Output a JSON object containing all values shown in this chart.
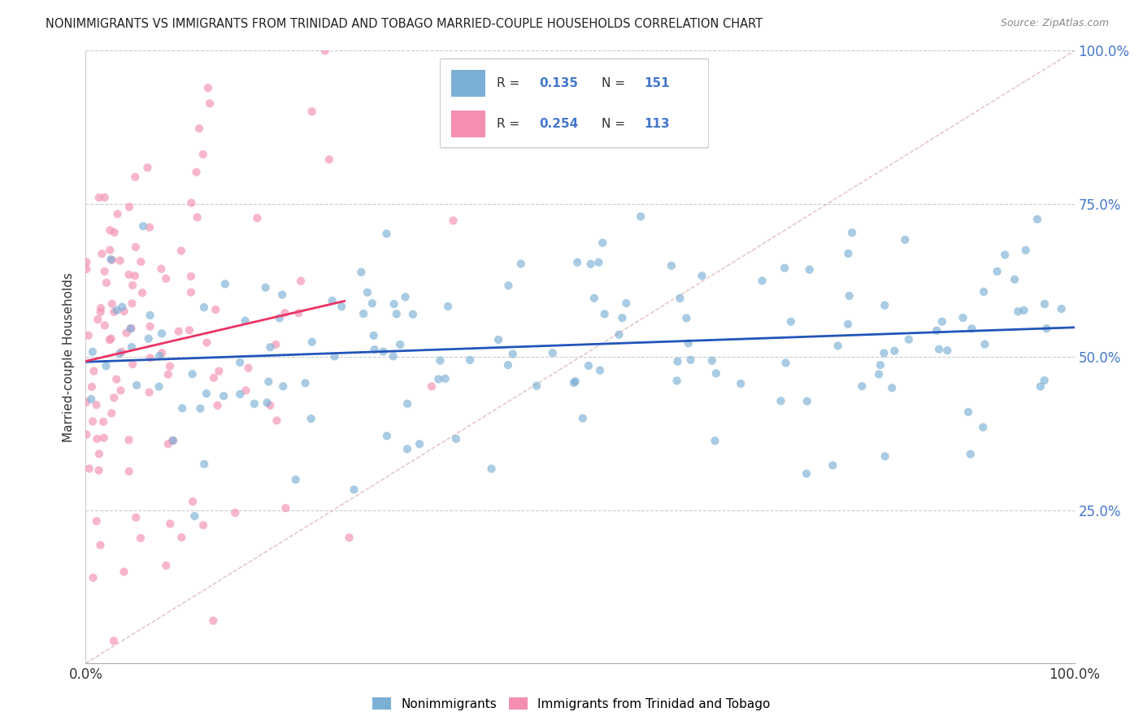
{
  "title": "NONIMMIGRANTS VS IMMIGRANTS FROM TRINIDAD AND TOBAGO MARRIED-COUPLE HOUSEHOLDS CORRELATION CHART",
  "source": "Source: ZipAtlas.com",
  "ylabel": "Married-couple Households",
  "legend_blue_R": "0.135",
  "legend_blue_N": "151",
  "legend_pink_R": "0.254",
  "legend_pink_N": "113",
  "blue_color": "#7BAFD4",
  "pink_color": "#F48FB1",
  "blue_line_color": "#2255BB",
  "pink_line_color": "#EE3366",
  "diagonal_color": "#DDB8B8",
  "right_axis_color": "#4477CC",
  "title_color": "#222222",
  "background_color": "#FFFFFF",
  "seed": 42,
  "blue_n": 151,
  "pink_n": 113,
  "blue_R": 0.135,
  "pink_R": 0.254,
  "blue_marker_size": 55,
  "pink_marker_size": 55
}
